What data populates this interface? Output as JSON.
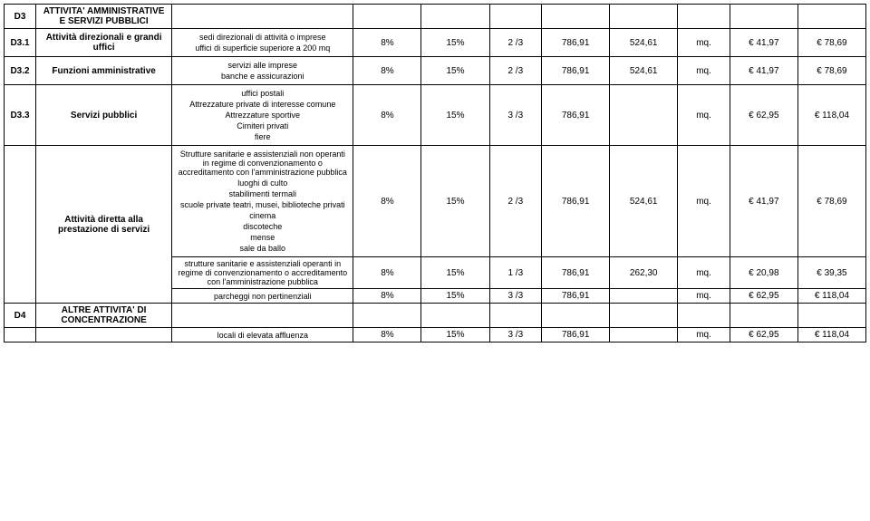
{
  "header": {
    "code": "D3",
    "title": "ATTIVITA' AMMINISTRATIVE E SERVIZI PUBBLICI"
  },
  "rows": [
    {
      "code": "D3.1",
      "category": "Attività direzionali e grandi uffici",
      "desc_lines": [
        "sedi direzionali di attività o imprese",
        "uffici di superficie superiore a 200 mq"
      ],
      "v1": "8%",
      "v2": "15%",
      "v3": "2 /3",
      "v4": "786,91",
      "v5": "524,61",
      "v6": "mq.",
      "v7": "€ 41,97",
      "v8": "€ 78,69"
    },
    {
      "code": "D3.2",
      "category": "Funzioni amministrative",
      "desc_lines": [
        "servizi alle imprese",
        "banche e assicurazioni"
      ],
      "v1": "8%",
      "v2": "15%",
      "v3": "2 /3",
      "v4": "786,91",
      "v5": "524,61",
      "v6": "mq.",
      "v7": "€ 41,97",
      "v8": "€ 78,69"
    },
    {
      "code": "D3.3",
      "category": "Servizi pubblici",
      "desc_lines": [
        "uffici postali",
        "Attrezzature private di interesse comune",
        "Attrezzature sportive",
        "Cimiteri privati",
        "fiere"
      ],
      "v1": "8%",
      "v2": "15%",
      "v3": "3 /3",
      "v4": "786,91",
      "v5": "",
      "v6": "mq.",
      "v7": "€ 62,95",
      "v8": "€ 118,04"
    },
    {
      "code": "",
      "category": "Attività diretta alla prestazione di servizi",
      "desc_lines": [
        "Strutture sanitarie e assistenziali non operanti in regime di convenzionamento o accreditamento con l'amministrazione pubblica",
        "luoghi di culto",
        "stabilimenti termali",
        "scuole private teatri, musei, biblioteche privati",
        "cinema",
        "discoteche",
        "mense",
        "sale da ballo"
      ],
      "v1": "8%",
      "v2": "15%",
      "v3": "2 /3",
      "v4": "786,91",
      "v5": "524,61",
      "v6": "mq.",
      "v7": "€ 41,97",
      "v8": "€ 78,69"
    },
    {
      "code": "",
      "category": "",
      "desc_lines": [
        "strutture sanitarie e assistenziali operanti in regime di convenzionamento o accreditamento con l'amministrazione pubblica"
      ],
      "v1": "8%",
      "v2": "15%",
      "v3": "1 /3",
      "v4": "786,91",
      "v5": "262,30",
      "v6": "mq.",
      "v7": "€ 20,98",
      "v8": "€ 39,35"
    },
    {
      "code": "",
      "category": "",
      "desc_lines": [
        "parcheggi non pertinenziali"
      ],
      "v1": "8%",
      "v2": "15%",
      "v3": "3 /3",
      "v4": "786,91",
      "v5": "",
      "v6": "mq.",
      "v7": "€ 62,95",
      "v8": "€ 118,04"
    }
  ],
  "footer": {
    "code": "D4",
    "title": "ALTRE ATTIVITA' DI CONCENTRAZIONE",
    "desc": "locali di elevata affluenza",
    "v1": "8%",
    "v2": "15%",
    "v3": "3 /3",
    "v4": "786,91",
    "v5": "",
    "v6": "mq.",
    "v7": "€ 62,95",
    "v8": "€ 118,04"
  }
}
